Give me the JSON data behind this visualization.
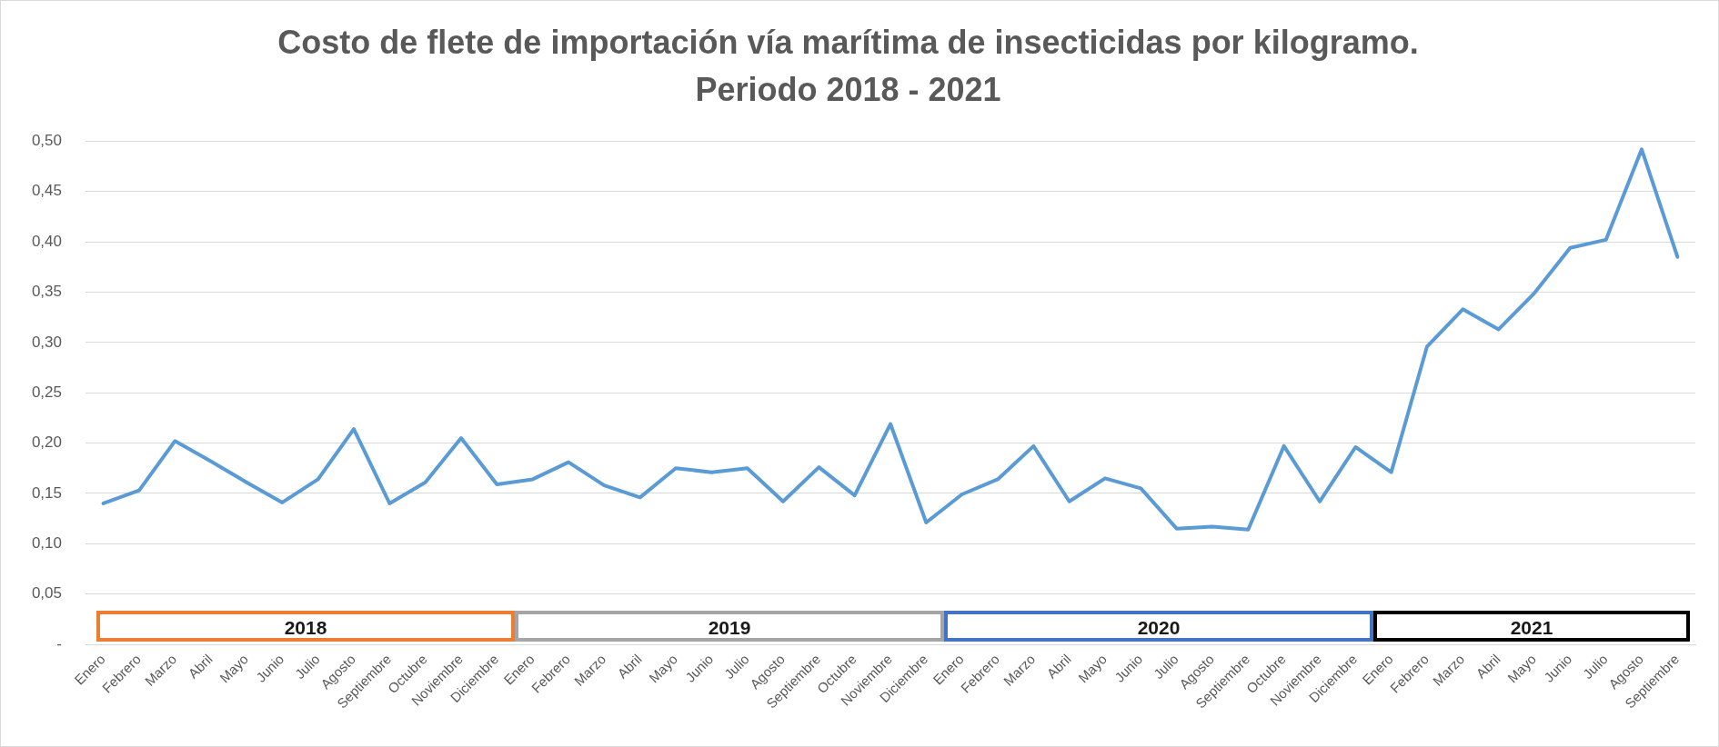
{
  "chart_data": {
    "type": "line",
    "title": "Costo de flete de importación vía marítima de insecticidas por kilogramo.",
    "subtitle": "Periodo 2018 - 2021",
    "categories": [
      "Enero",
      "Febrero",
      "Marzo",
      "Abril",
      "Mayo",
      "Junio",
      "Julio",
      "Agosto",
      "Septiembre",
      "Octubre",
      "Noviembre",
      "Diciembre",
      "Enero",
      "Febrero",
      "Marzo",
      "Abril",
      "Mayo",
      "Junio",
      "Julio",
      "Agosto",
      "Septiembre",
      "Octubre",
      "Noviembre",
      "Diciembre",
      "Enero",
      "Febrero",
      "Marzo",
      "Abril",
      "Mayo",
      "Junio",
      "Julio",
      "Agosto",
      "Septiembre",
      "Octubre",
      "Noviembre",
      "Diciembre",
      "Enero",
      "Febrero",
      "Marzo",
      "Abril",
      "Mayo",
      "Junio",
      "Julio",
      "Agosto",
      "Septiembre"
    ],
    "values": [
      0.14,
      0.153,
      0.202,
      0.182,
      0.161,
      0.141,
      0.164,
      0.214,
      0.14,
      0.161,
      0.205,
      0.159,
      0.164,
      0.181,
      0.158,
      0.146,
      0.175,
      0.171,
      0.175,
      0.142,
      0.176,
      0.148,
      0.219,
      0.121,
      0.149,
      0.164,
      0.197,
      0.142,
      0.165,
      0.155,
      0.115,
      0.117,
      0.114,
      0.197,
      0.142,
      0.196,
      0.171,
      0.296,
      0.333,
      0.313,
      0.349,
      0.394,
      0.402,
      0.492,
      0.385
    ],
    "color": "#5b9bd5",
    "ylim": [
      0,
      0.5
    ],
    "yticks": [
      {
        "value": 0,
        "label": "-"
      },
      {
        "value": 0.05,
        "label": "0,05"
      },
      {
        "value": 0.1,
        "label": "0,10"
      },
      {
        "value": 0.15,
        "label": "0,15"
      },
      {
        "value": 0.2,
        "label": "0,20"
      },
      {
        "value": 0.25,
        "label": "0,25"
      },
      {
        "value": 0.3,
        "label": "0,30"
      },
      {
        "value": 0.35,
        "label": "0,35"
      },
      {
        "value": 0.4,
        "label": "0,40"
      },
      {
        "value": 0.45,
        "label": "0,45"
      },
      {
        "value": 0.5,
        "label": "0,50"
      }
    ],
    "grid": "y",
    "annotations": [
      "2018",
      "2019",
      "2020",
      "2021"
    ]
  }
}
